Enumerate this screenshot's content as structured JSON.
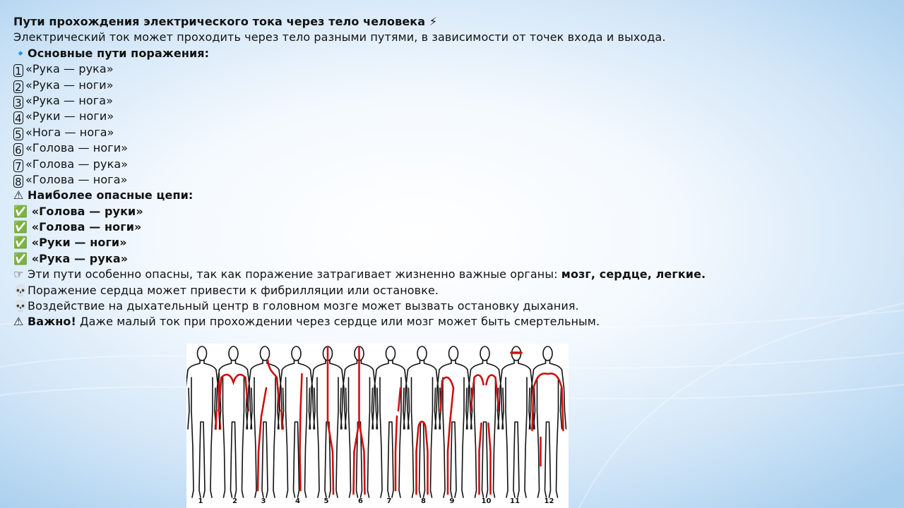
{
  "title": "Пути прохождения электрического тока через тело человека ⚡",
  "intro": "Электрический ток может проходить через тело разными путями, в зависимости от точек входа и выхода.",
  "main_paths": {
    "icon": "🔹",
    "heading": "Основные пути поражения:",
    "items": [
      {
        "num": "1",
        "label": "«Рука — рука»"
      },
      {
        "num": "2",
        "label": "«Рука — ноги»"
      },
      {
        "num": "3",
        "label": "«Рука — нога»"
      },
      {
        "num": "4",
        "label": "«Руки — ноги»"
      },
      {
        "num": "5",
        "label": "«Нога — нога»"
      },
      {
        "num": "6",
        "label": "«Голова — ноги»"
      },
      {
        "num": "7",
        "label": "«Голова — рука»"
      },
      {
        "num": "8",
        "label": "«Голова — нога»"
      }
    ]
  },
  "dangerous": {
    "icon": "⚠",
    "heading": "Наиболее опасные цепи:",
    "check_icon": "✅",
    "items": [
      "«Голова — руки»",
      "«Голова — ноги»",
      "«Руки — ноги»",
      "«Рука — рука»"
    ]
  },
  "notes": {
    "pointer_icon": "☞",
    "pointer_text": "Эти пути особенно опасны, так как поражение затрагивает жизненно важные органы: ",
    "pointer_bold": "мозг, сердце, легкие.",
    "skull_icon": "💀",
    "heart_text": "Поражение сердца может привести к фибрилляции или остановке.",
    "breath_text": "Воздействие на дыхательный центр в головном мозге может вызвать остановку дыхания.",
    "warning_icon": "⚠",
    "warning_bold": "Важно!",
    "warning_text": " Даже малый ток при прохождении через сердце или мозг может быть смертельным."
  },
  "figure": {
    "labels": [
      "1",
      "2",
      "3",
      "4",
      "5",
      "6",
      "7",
      "8",
      "9",
      "10",
      "11",
      "12"
    ],
    "outline_color": "#111111",
    "path_color": "#cc1111"
  }
}
